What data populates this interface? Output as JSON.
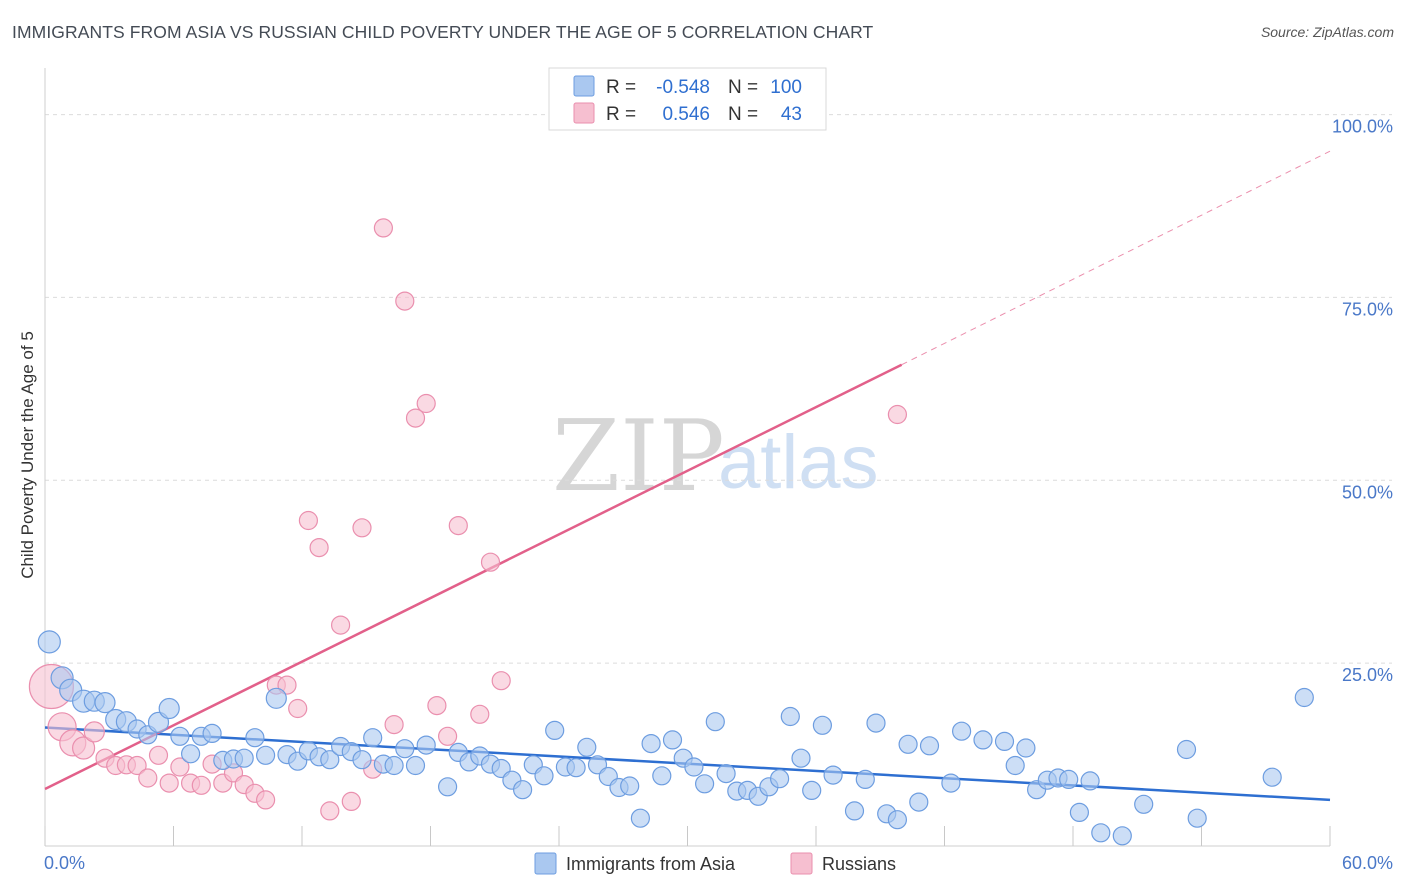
{
  "title": "IMMIGRANTS FROM ASIA VS RUSSIAN CHILD POVERTY UNDER THE AGE OF 5 CORRELATION CHART",
  "source": "Source: ZipAtlas.com",
  "watermark": {
    "zip": "ZIP",
    "atlas": "atlas"
  },
  "colors": {
    "blue_fill": "#aac8f0",
    "blue_stroke": "#6d9de0",
    "blue_line": "#2e6fd1",
    "pink_fill": "#f6bfd0",
    "pink_stroke": "#ea8fae",
    "pink_line": "#e2608a",
    "grid": "#dcdcdc",
    "axis": "#cfcfcf",
    "tick_text": "#4a78c8"
  },
  "legend": {
    "rows": [
      {
        "series": "Immigrants from Asia",
        "r_label": "R =",
        "r_value": "-0.548",
        "n_label": "N =",
        "n_value": "100"
      },
      {
        "series": "Russians",
        "r_label": "R =",
        "r_value": "0.546",
        "n_label": "N =",
        "n_value": "43"
      }
    ]
  },
  "chart_data": {
    "type": "scatter",
    "title": "IMMIGRANTS FROM ASIA VS RUSSIAN CHILD POVERTY UNDER THE AGE OF 5 CORRELATION CHART",
    "xlabel": "",
    "ylabel": "Child Poverty Under the Age of 5",
    "xlim": [
      0,
      60
    ],
    "ylim": [
      0,
      105
    ],
    "x_tick_labels": [
      {
        "value": 0,
        "label": "0.0%"
      },
      {
        "value": 60,
        "label": "60.0%"
      }
    ],
    "x_minor_ticks": [
      0,
      6,
      12,
      18,
      24,
      30,
      36,
      42,
      48,
      54,
      60
    ],
    "y_ticks": [
      {
        "value": 25,
        "label": "25.0%"
      },
      {
        "value": 50,
        "label": "50.0%"
      },
      {
        "value": 75,
        "label": "75.0%"
      },
      {
        "value": 100,
        "label": "100.0%"
      }
    ],
    "grid": true,
    "legend_position": "bottom-center",
    "series": [
      {
        "name": "Immigrants from Asia",
        "color": "#aac8f0",
        "r": -0.548,
        "n": 100,
        "trend": {
          "x": [
            0,
            60
          ],
          "y": [
            16.2,
            6.3
          ],
          "dashed_extension": false
        },
        "points": [
          [
            0.2,
            27.9,
            11
          ],
          [
            0.8,
            23.0,
            11
          ],
          [
            1.2,
            21.3,
            11
          ],
          [
            1.8,
            19.8,
            11
          ],
          [
            2.3,
            19.8,
            10
          ],
          [
            2.8,
            19.6,
            10
          ],
          [
            3.3,
            17.3,
            10
          ],
          [
            3.8,
            17.0,
            10
          ],
          [
            4.3,
            16.0,
            9
          ],
          [
            4.8,
            15.2,
            9
          ],
          [
            5.3,
            16.9,
            10
          ],
          [
            5.8,
            18.8,
            10
          ],
          [
            6.3,
            15.0,
            9
          ],
          [
            6.8,
            12.6,
            9
          ],
          [
            7.3,
            15.0,
            9
          ],
          [
            7.8,
            15.4,
            9
          ],
          [
            8.3,
            11.7,
            9
          ],
          [
            8.8,
            11.9,
            9
          ],
          [
            9.3,
            12.0,
            9
          ],
          [
            9.8,
            14.8,
            9
          ],
          [
            10.3,
            12.4,
            9
          ],
          [
            10.8,
            20.2,
            10
          ],
          [
            11.3,
            12.5,
            9
          ],
          [
            11.8,
            11.6,
            9
          ],
          [
            12.3,
            13.0,
            9
          ],
          [
            12.8,
            12.2,
            9
          ],
          [
            13.3,
            11.8,
            9
          ],
          [
            13.8,
            13.6,
            9
          ],
          [
            14.3,
            12.9,
            9
          ],
          [
            14.8,
            11.8,
            9
          ],
          [
            15.3,
            14.8,
            9
          ],
          [
            15.8,
            11.2,
            9
          ],
          [
            16.3,
            11.0,
            9
          ],
          [
            16.8,
            13.3,
            9
          ],
          [
            17.3,
            11.0,
            9
          ],
          [
            17.8,
            13.8,
            9
          ],
          [
            18.8,
            8.1,
            9
          ],
          [
            19.3,
            12.8,
            9
          ],
          [
            19.8,
            11.5,
            9
          ],
          [
            20.3,
            12.3,
            9
          ],
          [
            20.8,
            11.2,
            9
          ],
          [
            21.3,
            10.6,
            9
          ],
          [
            21.8,
            9.0,
            9
          ],
          [
            22.3,
            7.7,
            9
          ],
          [
            22.8,
            11.1,
            9
          ],
          [
            23.3,
            9.6,
            9
          ],
          [
            23.8,
            15.8,
            9
          ],
          [
            24.3,
            10.8,
            9
          ],
          [
            24.8,
            10.7,
            9
          ],
          [
            25.3,
            13.5,
            9
          ],
          [
            25.8,
            11.1,
            9
          ],
          [
            26.3,
            9.5,
            9
          ],
          [
            26.8,
            8.0,
            9
          ],
          [
            27.3,
            8.2,
            9
          ],
          [
            27.8,
            3.8,
            9
          ],
          [
            28.3,
            14.0,
            9
          ],
          [
            28.8,
            9.6,
            9
          ],
          [
            29.3,
            14.5,
            9
          ],
          [
            29.8,
            12.0,
            9
          ],
          [
            30.3,
            10.8,
            9
          ],
          [
            30.8,
            8.5,
            9
          ],
          [
            31.3,
            17.0,
            9
          ],
          [
            31.8,
            9.9,
            9
          ],
          [
            32.3,
            7.5,
            9
          ],
          [
            32.8,
            7.6,
            9
          ],
          [
            33.3,
            6.8,
            9
          ],
          [
            33.8,
            8.1,
            9
          ],
          [
            34.3,
            9.2,
            9
          ],
          [
            34.8,
            17.7,
            9
          ],
          [
            35.3,
            12.0,
            9
          ],
          [
            35.8,
            7.6,
            9
          ],
          [
            36.3,
            16.5,
            9
          ],
          [
            36.8,
            9.7,
            9
          ],
          [
            37.8,
            4.8,
            9
          ],
          [
            38.3,
            9.1,
            9
          ],
          [
            38.8,
            16.8,
            9
          ],
          [
            39.3,
            4.4,
            9
          ],
          [
            39.8,
            3.6,
            9
          ],
          [
            40.3,
            13.9,
            9
          ],
          [
            40.8,
            6.0,
            9
          ],
          [
            41.3,
            13.7,
            9
          ],
          [
            42.3,
            8.6,
            9
          ],
          [
            42.8,
            15.7,
            9
          ],
          [
            43.8,
            14.5,
            9
          ],
          [
            44.8,
            14.3,
            9
          ],
          [
            45.3,
            11.0,
            9
          ],
          [
            45.8,
            13.4,
            9
          ],
          [
            46.3,
            7.7,
            9
          ],
          [
            46.8,
            9.0,
            9
          ],
          [
            47.3,
            9.3,
            9
          ],
          [
            48.3,
            4.6,
            9
          ],
          [
            48.8,
            8.9,
            9
          ],
          [
            49.3,
            1.8,
            9
          ],
          [
            50.3,
            1.4,
            9
          ],
          [
            51.3,
            5.7,
            9
          ],
          [
            53.3,
            13.2,
            9
          ],
          [
            53.8,
            3.8,
            9
          ],
          [
            57.3,
            9.4,
            9
          ],
          [
            58.8,
            20.3,
            9
          ],
          [
            47.8,
            9.1,
            9
          ]
        ]
      },
      {
        "name": "Russians",
        "color": "#f6bfd0",
        "r": 0.546,
        "n": 43,
        "trend": {
          "x": [
            0,
            40
          ],
          "y": [
            7.8,
            65.8
          ],
          "extension_x": [
            40,
            60
          ],
          "extension_y": [
            65.8,
            95.0
          ],
          "dashed_extension": true
        },
        "points": [
          [
            0.3,
            21.8,
            22
          ],
          [
            0.8,
            16.3,
            14
          ],
          [
            1.3,
            14.1,
            13
          ],
          [
            1.8,
            13.4,
            11
          ],
          [
            2.3,
            15.6,
            10
          ],
          [
            2.8,
            12.0,
            9
          ],
          [
            3.3,
            11.0,
            9
          ],
          [
            3.8,
            11.1,
            9
          ],
          [
            4.3,
            11.0,
            9
          ],
          [
            4.8,
            9.3,
            9
          ],
          [
            5.3,
            12.4,
            9
          ],
          [
            5.8,
            8.6,
            9
          ],
          [
            6.3,
            10.8,
            9
          ],
          [
            6.8,
            8.6,
            9
          ],
          [
            7.3,
            8.3,
            9
          ],
          [
            7.8,
            11.2,
            9
          ],
          [
            8.3,
            8.6,
            9
          ],
          [
            8.8,
            10.0,
            9
          ],
          [
            9.3,
            8.4,
            9
          ],
          [
            9.8,
            7.2,
            9
          ],
          [
            10.3,
            6.3,
            9
          ],
          [
            10.8,
            22.0,
            9
          ],
          [
            11.3,
            22.0,
            9
          ],
          [
            11.8,
            18.8,
            9
          ],
          [
            12.3,
            44.5,
            9
          ],
          [
            12.8,
            40.8,
            9
          ],
          [
            13.3,
            4.8,
            9
          ],
          [
            13.8,
            30.2,
            9
          ],
          [
            14.3,
            6.1,
            9
          ],
          [
            14.8,
            43.5,
            9
          ],
          [
            15.3,
            10.5,
            9
          ],
          [
            15.8,
            84.5,
            9
          ],
          [
            16.3,
            16.6,
            9
          ],
          [
            16.8,
            74.5,
            9
          ],
          [
            17.3,
            58.5,
            9
          ],
          [
            17.8,
            60.5,
            9
          ],
          [
            18.3,
            19.2,
            9
          ],
          [
            18.8,
            15.0,
            9
          ],
          [
            19.3,
            43.8,
            9
          ],
          [
            20.3,
            18.0,
            9
          ],
          [
            20.8,
            38.8,
            9
          ],
          [
            21.3,
            22.6,
            9
          ],
          [
            39.8,
            59.0,
            9
          ]
        ]
      }
    ]
  }
}
